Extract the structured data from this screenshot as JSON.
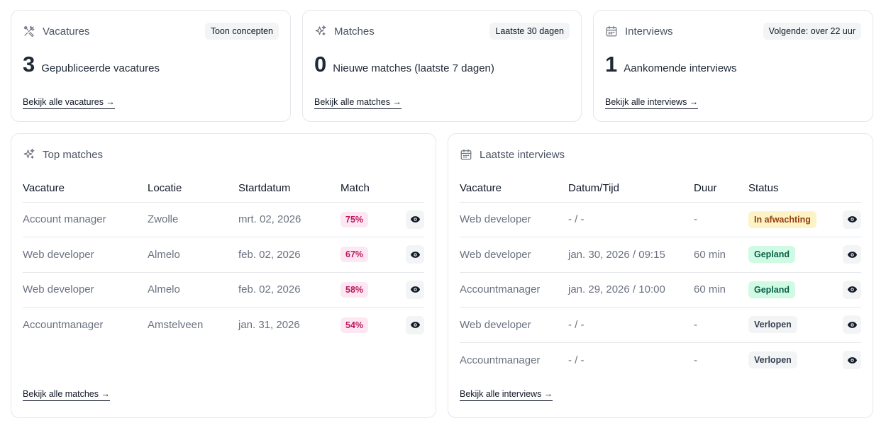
{
  "stats": [
    {
      "title": "Vacatures",
      "icon": "tools-icon",
      "pill": "Toon concepten",
      "number": "3",
      "label": "Gepubliceerde vacatures",
      "link": "Bekijk alle vacatures →"
    },
    {
      "title": "Matches",
      "icon": "sparkles-icon",
      "pill": "Laatste 30 dagen",
      "number": "0",
      "label": "Nieuwe matches (laatste 7 dagen)",
      "link": "Bekijk alle matches →"
    },
    {
      "title": "Interviews",
      "icon": "calendar-icon",
      "pill": "Volgende: over 22 uur",
      "number": "1",
      "label": "Aankomende interviews",
      "link": "Bekijk alle interviews →"
    }
  ],
  "top_matches": {
    "title": "Top matches",
    "columns": [
      "Vacature",
      "Locatie",
      "Startdatum",
      "Match"
    ],
    "rows": [
      {
        "vacature": "Account manager",
        "locatie": "Zwolle",
        "startdatum": "mrt. 02, 2026",
        "match": "75%"
      },
      {
        "vacature": "Web developer",
        "locatie": "Almelo",
        "startdatum": "feb. 02, 2026",
        "match": "67%"
      },
      {
        "vacature": "Web developer",
        "locatie": "Almelo",
        "startdatum": "feb. 02, 2026",
        "match": "58%"
      },
      {
        "vacature": "Accountmanager",
        "locatie": "Amstelveen",
        "startdatum": "jan. 31, 2026",
        "match": "54%"
      }
    ],
    "link": "Bekijk alle matches →"
  },
  "latest_interviews": {
    "title": "Laatste interviews",
    "columns": [
      "Vacature",
      "Datum/Tijd",
      "Duur",
      "Status"
    ],
    "rows": [
      {
        "vacature": "Web developer",
        "datum": "- / -",
        "duur": "-",
        "status": "In afwachting",
        "status_type": "pending"
      },
      {
        "vacature": "Web developer",
        "datum": "jan. 30, 2026 / 09:15",
        "duur": "60 min",
        "status": "Gepland",
        "status_type": "planned"
      },
      {
        "vacature": "Accountmanager",
        "datum": "jan. 29, 2026 / 10:00",
        "duur": "60 min",
        "status": "Gepland",
        "status_type": "planned"
      },
      {
        "vacature": "Web developer",
        "datum": "- / -",
        "duur": "-",
        "status": "Verlopen",
        "status_type": "expired"
      },
      {
        "vacature": "Accountmanager",
        "datum": "- / -",
        "duur": "-",
        "status": "Verlopen",
        "status_type": "expired"
      }
    ],
    "link": "Bekijk alle interviews →"
  },
  "colors": {
    "pending_bg": "#fef3c7",
    "pending_fg": "#92400e",
    "planned_bg": "#d1fae5",
    "planned_fg": "#065f46",
    "expired_bg": "#f3f4f6",
    "expired_fg": "#374151"
  }
}
